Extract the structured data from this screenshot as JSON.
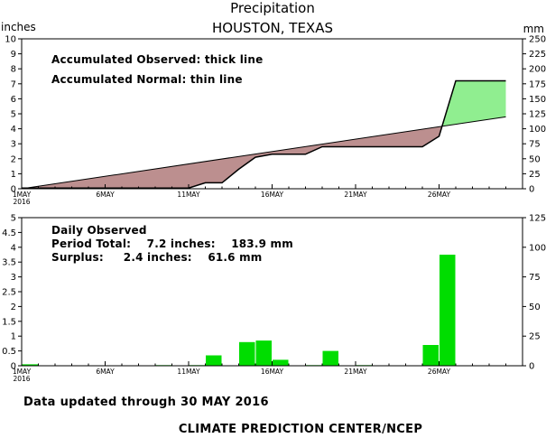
{
  "header": {
    "title": "Precipitation",
    "subtitle": "HOUSTON, TEXAS",
    "left_unit": "inches",
    "right_unit": "mm"
  },
  "footer": {
    "updated": "Data updated through 30 MAY 2016",
    "credit": "CLIMATE PREDICTION CENTER/NCEP"
  },
  "colors": {
    "deficit": "#bc8f8f",
    "surplus": "#90ee90",
    "bars": "#00dd00",
    "line": "#000000"
  },
  "chart_data": [
    {
      "type": "area",
      "panel": "accumulated",
      "annotations": [
        "Accumulated Observed: thick line",
        "Accumulated Normal: thin line"
      ],
      "x_tick_labels": [
        "1MAY",
        "6MAY",
        "11MAY",
        "16MAY",
        "21MAY",
        "26MAY"
      ],
      "x_year_label": "2016",
      "xlim": [
        1,
        31
      ],
      "y_left": {
        "unit": "inches",
        "ylim": [
          0,
          10
        ],
        "ticks": [
          0,
          1,
          2,
          3,
          4,
          5,
          6,
          7,
          8,
          9,
          10
        ]
      },
      "y_right": {
        "unit": "mm",
        "ylim": [
          0,
          250
        ],
        "ticks": [
          0,
          25,
          50,
          75,
          100,
          125,
          150,
          175,
          200,
          225,
          250
        ]
      },
      "grid": false,
      "series": [
        {
          "name": "Accumulated Observed",
          "x": [
            1,
            2,
            3,
            4,
            5,
            6,
            7,
            8,
            9,
            10,
            11,
            12,
            13,
            14,
            15,
            16,
            17,
            18,
            19,
            20,
            21,
            22,
            23,
            24,
            25,
            26,
            27,
            28,
            29,
            30
          ],
          "y": [
            0.05,
            0.05,
            0.05,
            0.05,
            0.05,
            0.05,
            0.05,
            0.05,
            0.05,
            0.05,
            0.05,
            0.4,
            0.4,
            1.3,
            2.1,
            2.3,
            2.3,
            2.3,
            2.8,
            2.8,
            2.8,
            2.8,
            2.8,
            2.8,
            2.8,
            3.5,
            7.2,
            7.2,
            7.2,
            7.2
          ]
        },
        {
          "name": "Accumulated Normal",
          "x": [
            1,
            30
          ],
          "y": [
            0.0,
            4.8
          ]
        }
      ]
    },
    {
      "type": "bar",
      "panel": "daily",
      "annotations": [
        "Daily Observed",
        "Period Total:    7.2 inches:    183.9 mm",
        "Surplus:     2.4 inches:    61.6 mm"
      ],
      "x_tick_labels": [
        "1MAY",
        "6MAY",
        "11MAY",
        "16MAY",
        "21MAY",
        "26MAY"
      ],
      "x_year_label": "2016",
      "xlim": [
        1,
        31
      ],
      "y_left": {
        "unit": "inches",
        "ylim": [
          0,
          5
        ],
        "ticks": [
          0,
          0.5,
          1,
          1.5,
          2,
          2.5,
          3,
          3.5,
          4,
          4.5,
          5
        ]
      },
      "y_right": {
        "unit": "mm",
        "ylim": [
          0,
          125
        ],
        "ticks": [
          0,
          25,
          50,
          75,
          100,
          125
        ]
      },
      "grid": false,
      "series": [
        {
          "name": "Daily Observed",
          "x": [
            1,
            2,
            3,
            4,
            5,
            6,
            7,
            8,
            9,
            10,
            11,
            12,
            13,
            14,
            15,
            16,
            17,
            18,
            19,
            20,
            21,
            22,
            23,
            24,
            25,
            26,
            27,
            28,
            29,
            30
          ],
          "values": [
            0.05,
            0,
            0,
            0,
            0,
            0,
            0,
            0,
            0.02,
            0,
            0.02,
            0.35,
            0,
            0.8,
            0.85,
            0.2,
            0,
            0.02,
            0.5,
            0,
            0.02,
            0,
            0,
            0,
            0.7,
            3.75,
            0,
            0,
            0,
            0
          ]
        }
      ]
    }
  ]
}
